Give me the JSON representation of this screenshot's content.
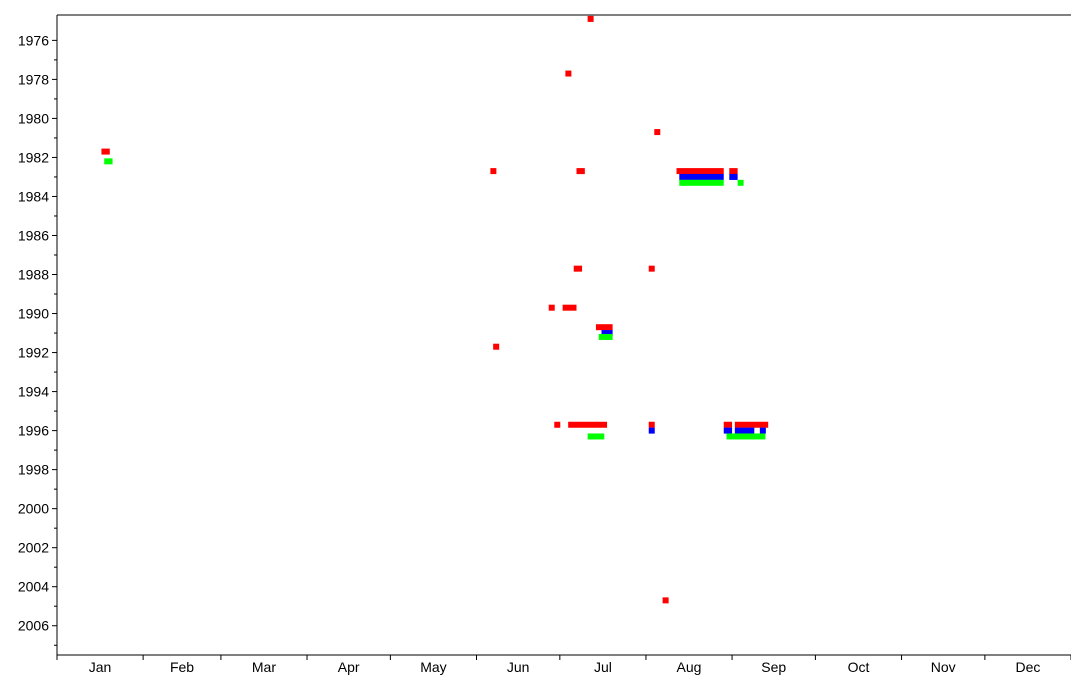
{
  "chart_data": {
    "type": "scatter",
    "title": "",
    "xlabel": "",
    "ylabel": "",
    "x_categories": [
      "Jan",
      "Feb",
      "Mar",
      "Apr",
      "May",
      "Jun",
      "Jul",
      "Aug",
      "Sep",
      "Oct",
      "Nov",
      "Dec"
    ],
    "xlim_day_of_year": [
      1,
      366
    ],
    "y_ticks": [
      1976,
      1978,
      1980,
      1982,
      1984,
      1986,
      1988,
      1990,
      1992,
      1994,
      1996,
      1998,
      2000,
      2002,
      2004,
      2006
    ],
    "ylim": [
      1974.7,
      2007.5
    ],
    "y_inverted": true,
    "grid": false,
    "legend": "none",
    "colors": {
      "red": "#ff0000",
      "blue": "#0000ff",
      "green": "#00ff00"
    },
    "series": [
      {
        "color": "red",
        "segments": [
          {
            "year": 1974.9,
            "start": 192,
            "end": 193
          },
          {
            "year": 1977.7,
            "start": 184,
            "end": 185
          },
          {
            "year": 1980.7,
            "start": 216,
            "end": 217
          },
          {
            "year": 1981.7,
            "start": 17,
            "end": 20
          },
          {
            "year": 1982.7,
            "start": 157,
            "end": 158
          },
          {
            "year": 1982.7,
            "start": 188,
            "end": 191
          },
          {
            "year": 1982.7,
            "start": 224,
            "end": 241
          },
          {
            "year": 1982.7,
            "start": 243,
            "end": 246
          },
          {
            "year": 1987.7,
            "start": 187,
            "end": 190
          },
          {
            "year": 1987.7,
            "start": 214,
            "end": 215
          },
          {
            "year": 1989.7,
            "start": 178,
            "end": 180
          },
          {
            "year": 1989.7,
            "start": 183,
            "end": 188
          },
          {
            "year": 1990.7,
            "start": 195,
            "end": 201
          },
          {
            "year": 1991.7,
            "start": 158,
            "end": 160
          },
          {
            "year": 1995.7,
            "start": 180,
            "end": 182
          },
          {
            "year": 1995.7,
            "start": 185,
            "end": 199
          },
          {
            "year": 1995.7,
            "start": 214,
            "end": 216
          },
          {
            "year": 1995.7,
            "start": 241,
            "end": 244
          },
          {
            "year": 1995.7,
            "start": 245,
            "end": 257
          },
          {
            "year": 2004.7,
            "start": 219,
            "end": 221
          }
        ]
      },
      {
        "color": "blue",
        "segments": [
          {
            "year": 1983.0,
            "start": 225,
            "end": 241
          },
          {
            "year": 1983.0,
            "start": 243,
            "end": 246
          },
          {
            "year": 1991.0,
            "start": 197,
            "end": 201
          },
          {
            "year": 1996.0,
            "start": 214,
            "end": 216
          },
          {
            "year": 1996.0,
            "start": 241,
            "end": 244
          },
          {
            "year": 1996.0,
            "start": 245,
            "end": 252
          },
          {
            "year": 1996.0,
            "start": 254,
            "end": 256
          }
        ]
      },
      {
        "color": "green",
        "segments": [
          {
            "year": 1982.2,
            "start": 18,
            "end": 21
          },
          {
            "year": 1983.3,
            "start": 225,
            "end": 241
          },
          {
            "year": 1983.3,
            "start": 246,
            "end": 248
          },
          {
            "year": 1991.2,
            "start": 196,
            "end": 201
          },
          {
            "year": 1996.3,
            "start": 192,
            "end": 198
          },
          {
            "year": 1996.3,
            "start": 242,
            "end": 256
          }
        ]
      }
    ]
  }
}
